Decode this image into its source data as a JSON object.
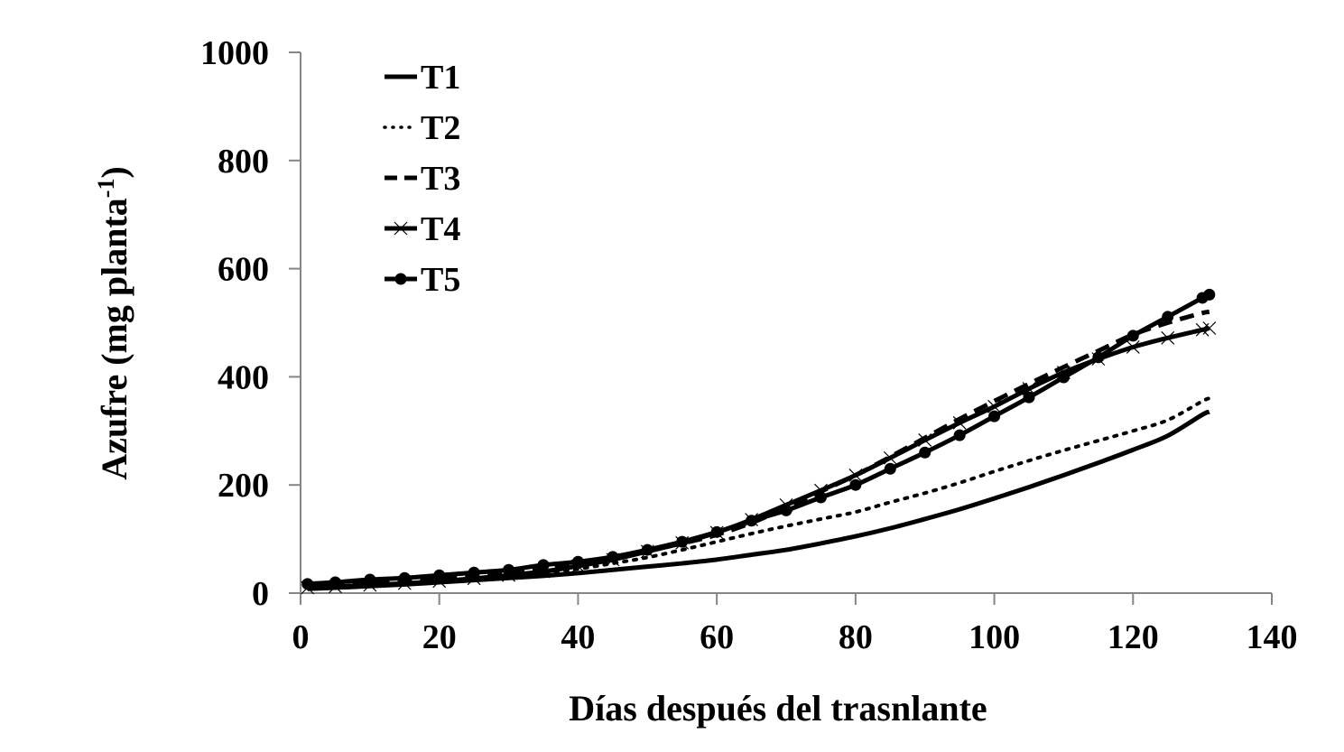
{
  "chart_data": {
    "type": "line",
    "title": "",
    "xlabel": "Días después del trasnlante",
    "ylabel": "Azufre (mg planta",
    "ylabel_superscript": "-1",
    "ylabel_suffix": ")",
    "xlim": [
      0,
      140
    ],
    "ylim": [
      0,
      1000
    ],
    "x_ticks": [
      0,
      20,
      40,
      60,
      80,
      100,
      120,
      140
    ],
    "y_ticks": [
      0,
      200,
      400,
      600,
      800,
      1000
    ],
    "grid": false,
    "legend_position": "upper-left",
    "x": [
      1,
      5,
      10,
      15,
      20,
      25,
      30,
      35,
      40,
      45,
      50,
      55,
      60,
      65,
      70,
      75,
      80,
      85,
      90,
      95,
      100,
      105,
      110,
      115,
      120,
      125,
      130,
      131
    ],
    "series": [
      {
        "name": "T1",
        "style": "solid",
        "marker": "none",
        "values": [
          8,
          10,
          13,
          16,
          20,
          24,
          28,
          32,
          37,
          43,
          49,
          55,
          62,
          71,
          80,
          92,
          105,
          120,
          137,
          155,
          175,
          196,
          218,
          241,
          265,
          291,
          330,
          335
        ]
      },
      {
        "name": "T2",
        "style": "dotted",
        "marker": "none",
        "values": [
          9,
          11,
          14,
          18,
          22,
          27,
          32,
          38,
          45,
          55,
          66,
          80,
          95,
          110,
          124,
          137,
          150,
          168,
          185,
          204,
          225,
          245,
          264,
          282,
          300,
          320,
          355,
          360
        ]
      },
      {
        "name": "T3",
        "style": "dashed",
        "marker": "none",
        "values": [
          12,
          14,
          18,
          22,
          27,
          32,
          38,
          45,
          52,
          63,
          78,
          92,
          108,
          130,
          158,
          188,
          218,
          252,
          287,
          322,
          355,
          387,
          418,
          448,
          478,
          500,
          518,
          520
        ]
      },
      {
        "name": "T4",
        "style": "solid",
        "marker": "x",
        "values": [
          10,
          12,
          15,
          18,
          22,
          27,
          33,
          40,
          50,
          62,
          77,
          93,
          112,
          136,
          163,
          190,
          218,
          250,
          283,
          315,
          345,
          378,
          408,
          433,
          455,
          472,
          487,
          490
        ]
      },
      {
        "name": "T5",
        "style": "solid",
        "marker": "dot",
        "values": [
          17,
          20,
          25,
          28,
          33,
          38,
          43,
          52,
          58,
          67,
          80,
          95,
          113,
          134,
          153,
          177,
          200,
          230,
          260,
          292,
          327,
          362,
          399,
          436,
          476,
          511,
          546,
          552
        ]
      }
    ]
  },
  "legend": {
    "items": [
      {
        "label": "T1"
      },
      {
        "label": "T2"
      },
      {
        "label": "T3"
      },
      {
        "label": "T4"
      },
      {
        "label": "T5"
      }
    ]
  },
  "colors": {
    "series": "#000000",
    "axis": "#868686",
    "text": "#000000"
  }
}
